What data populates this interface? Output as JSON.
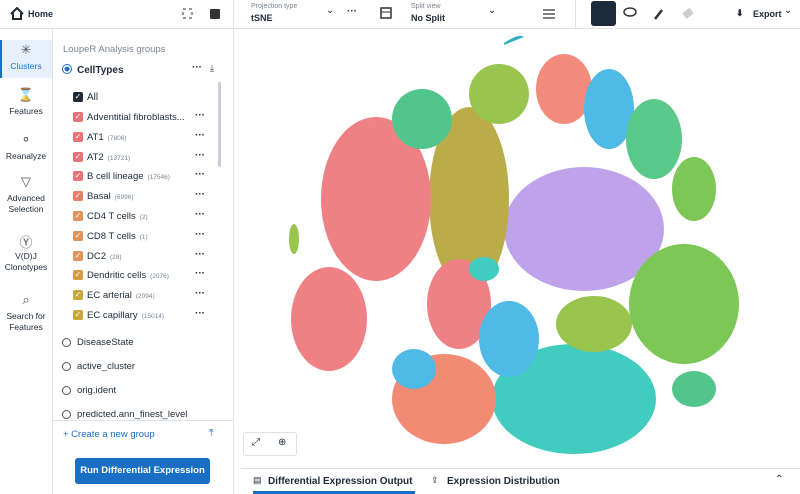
{
  "toolbar": {
    "home": "Home",
    "projection_label": "Projection type",
    "projection": "tSNE",
    "split_label": "Split view",
    "split": "No Split",
    "export": "Export"
  },
  "rail": [
    "Clusters",
    "Features",
    "Reanalyze",
    "Advanced Selection",
    "V(D)J Clonotypes",
    "Search for Features"
  ],
  "panel": {
    "heading": "LoupeR Analysis groups",
    "active_group": "CellTypes",
    "all": "All",
    "items": [
      {
        "name": "Adventitial fibroblasts...",
        "color": "#e8737a"
      },
      {
        "name": "AT1",
        "count": "(7806)",
        "color": "#e8737a"
      },
      {
        "name": "AT2",
        "count": "(13721)",
        "color": "#e8737a"
      },
      {
        "name": "B cell lineage",
        "count": "(17546)",
        "color": "#e8737a"
      },
      {
        "name": "Basal",
        "count": "(6996)",
        "color": "#e67e6a"
      },
      {
        "name": "CD4 T cells",
        "count": "(2)",
        "color": "#e0945a"
      },
      {
        "name": "CD8 T cells",
        "count": "(1)",
        "color": "#e0945a"
      },
      {
        "name": "DC2",
        "count": "(28)",
        "color": "#e0945a"
      },
      {
        "name": "Dendritic cells",
        "count": "(2076)",
        "color": "#d49a45"
      },
      {
        "name": "EC arterial",
        "count": "(2094)",
        "color": "#c8a83a"
      },
      {
        "name": "EC capillary",
        "count": "(15014)",
        "color": "#c8a83a"
      }
    ],
    "other_groups": [
      "DiseaseState",
      "active_cluster",
      "orig.ident",
      "predicted.ann_finest_level"
    ],
    "create": "+ Create a new group",
    "button": "Run Differential Expression"
  },
  "tabs": [
    "Differential Expression Output",
    "Expression Distribution"
  ]
}
